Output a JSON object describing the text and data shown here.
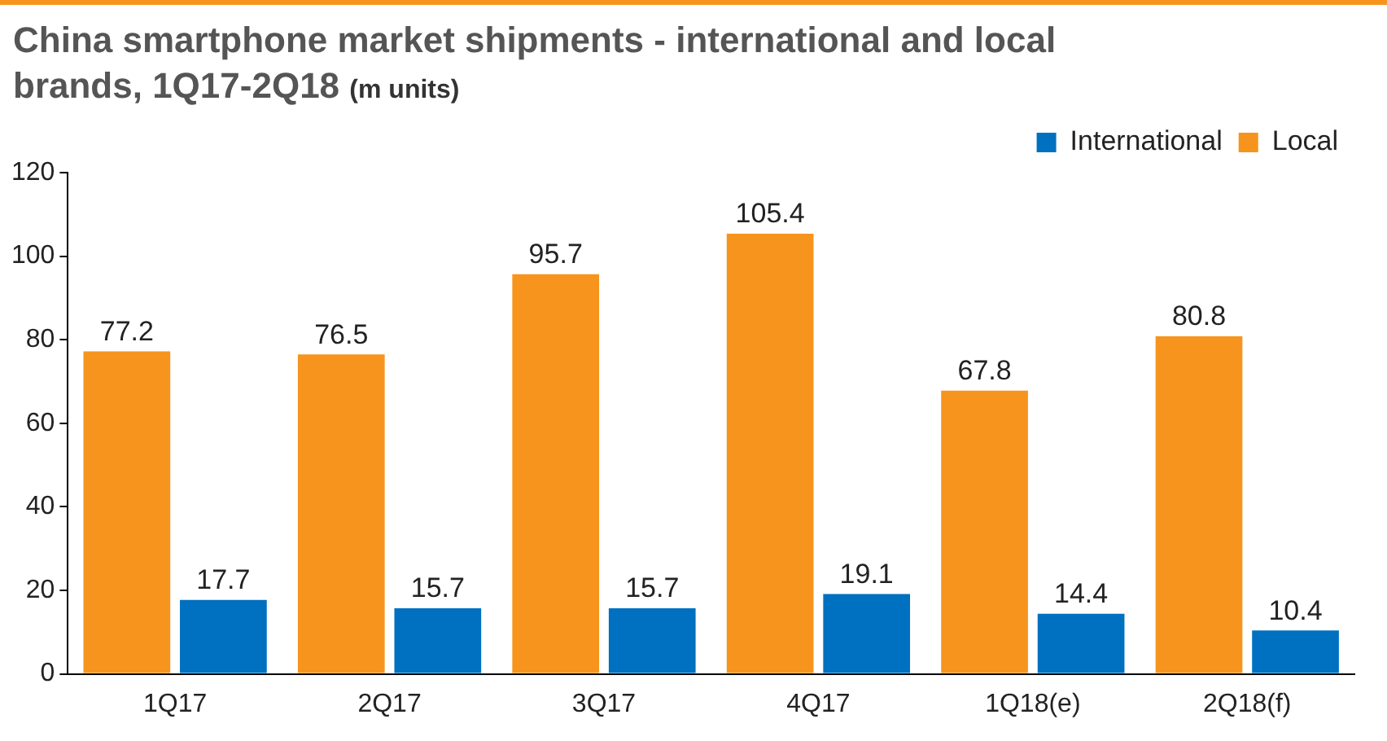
{
  "chart_data": {
    "type": "bar",
    "title": "China smartphone market shipments - international and local brands, 1Q17-2Q18",
    "subtitle": "(m units)",
    "categories": [
      "1Q17",
      "2Q17",
      "3Q17",
      "4Q17",
      "1Q18(e)",
      "2Q18(f)"
    ],
    "series": [
      {
        "name": "Local",
        "color": "#f7941d",
        "values": [
          77.2,
          76.5,
          95.7,
          105.4,
          67.8,
          80.8
        ]
      },
      {
        "name": "International",
        "color": "#0070c0",
        "values": [
          17.7,
          15.7,
          15.7,
          19.1,
          14.4,
          10.4
        ]
      }
    ],
    "ylim": [
      0,
      120
    ],
    "yticks": [
      0,
      20,
      40,
      60,
      80,
      100,
      120
    ],
    "grid": false,
    "legend": "top right",
    "data_labels": true
  }
}
